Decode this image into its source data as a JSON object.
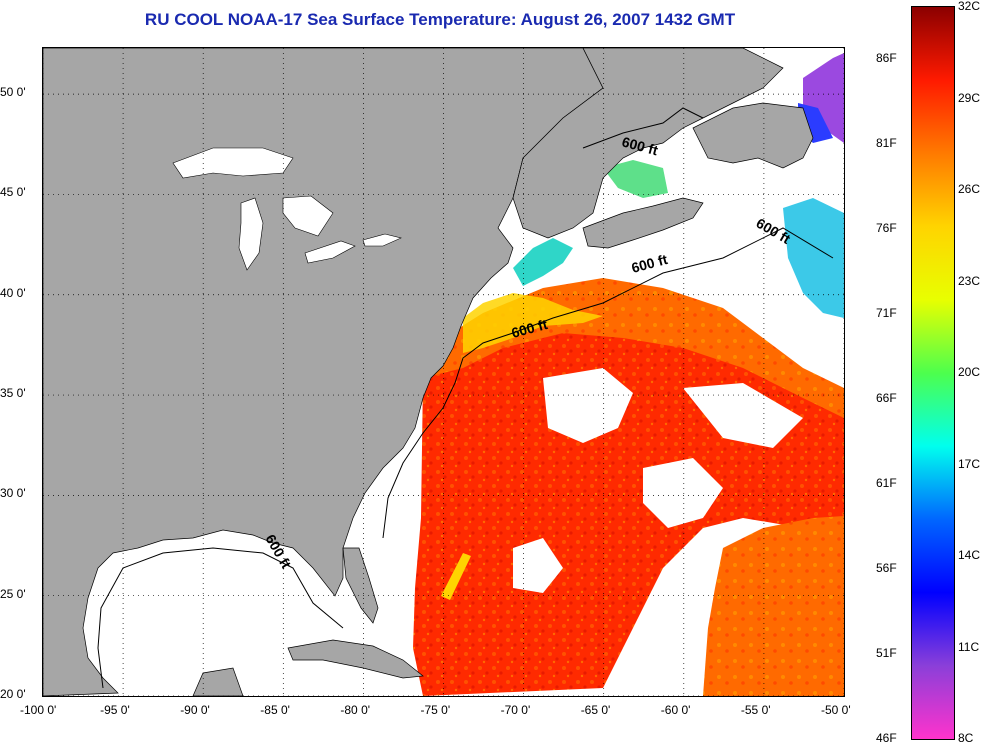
{
  "title": "RU COOL  NOAA-17  Sea Surface Temperature:  August 26, 2007 1432 GMT",
  "map": {
    "lon_range": [
      -100,
      -50
    ],
    "lat_range": [
      20,
      52.3
    ],
    "lon_ticks": [
      "-100 0'",
      "-95 0'",
      "-90 0'",
      "-85 0'",
      "-80 0'",
      "-75 0'",
      "-70 0'",
      "-65 0'",
      "-60 0'",
      "-55 0'",
      "-50 0'"
    ],
    "lat_ticks": [
      "20 0'",
      "25 0'",
      "30 0'",
      "35 0'",
      "40 0'",
      "45 0'",
      "50 0'"
    ],
    "contour_labels": [
      "600 ft",
      "600 ft",
      "600 ft",
      "600 ft",
      "600 ft"
    ],
    "land_color": "#a6a6a6",
    "no_data_color": "#ffffff",
    "gridlines": "dotted"
  },
  "colorbar": {
    "celsius": [
      "32C",
      "29C",
      "26C",
      "23C",
      "20C",
      "17C",
      "14C",
      "11C",
      "8C"
    ],
    "fahrenheit": [
      "86F",
      "81F",
      "76F",
      "71F",
      "66F",
      "61F",
      "56F",
      "51F",
      "46F"
    ],
    "range_c": [
      8,
      32
    ],
    "colors": [
      "#8b0000",
      "#ff1a00",
      "#ff7a00",
      "#ffd400",
      "#e8ff00",
      "#4dff4d",
      "#00ffee",
      "#0066ff",
      "#0000ff",
      "#8b3fd9",
      "#ff33cc"
    ]
  }
}
